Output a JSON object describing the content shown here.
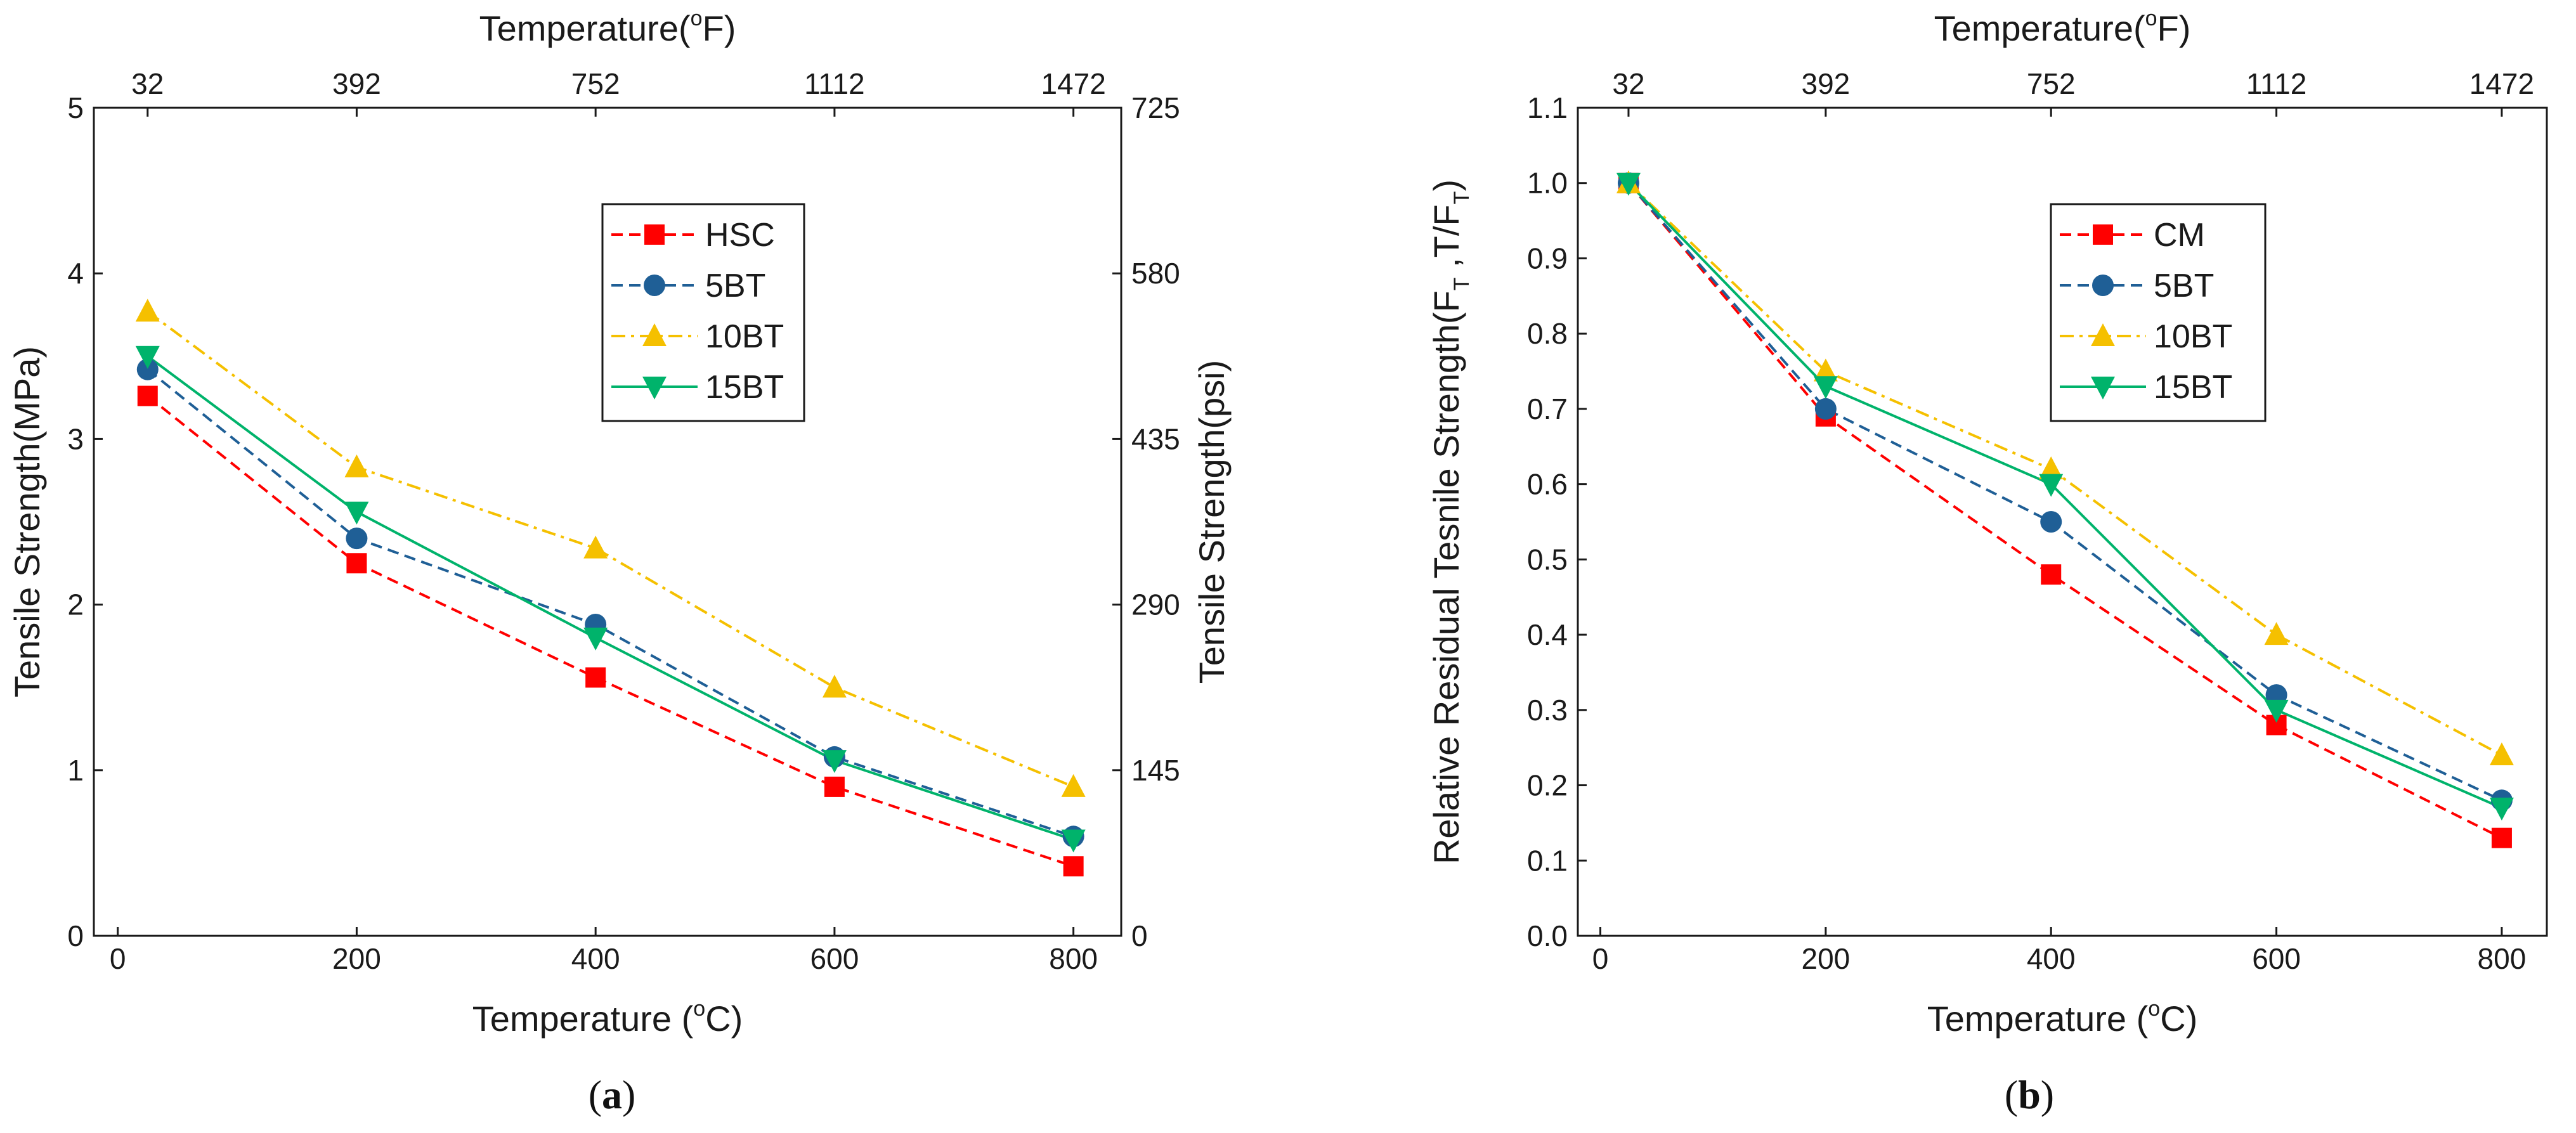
{
  "chart_data": [
    {
      "type": "line",
      "panel_label": "a",
      "x": [
        25,
        200,
        400,
        600,
        800
      ],
      "xlabel": "Temperature (°C)",
      "xlabel_parts": {
        "pre": "Temperature (",
        "sup": "o",
        "post": "C)"
      },
      "xlim": [
        -20,
        840
      ],
      "xticks": [
        0,
        200,
        400,
        600,
        800
      ],
      "ylabel": "Tensile Strength(MPa)",
      "ylim": [
        0,
        5
      ],
      "yticks": [
        0,
        1,
        2,
        3,
        4,
        5
      ],
      "secondary_ylabel": "Tensile Strength(psi)",
      "secondary_yticks": [
        "0",
        "145",
        "290",
        "435",
        "580",
        "725"
      ],
      "top_xlabel": "Temperature(°F)",
      "top_xlabel_parts": {
        "pre": "Temperature(",
        "sup": "o",
        "post": "F)"
      },
      "top_xticks": [
        "32",
        "392",
        "752",
        "1112",
        "1472"
      ],
      "grid": false,
      "legend": "upper-center",
      "series": [
        {
          "name": "HSC",
          "values": [
            3.26,
            2.25,
            1.56,
            0.9,
            0.42
          ],
          "color": "#ff0000",
          "marker": "square",
          "dash": "dashed"
        },
        {
          "name": "5BT",
          "values": [
            3.42,
            2.4,
            1.88,
            1.08,
            0.6
          ],
          "color": "#1f5f96",
          "marker": "circle",
          "dash": "dashed"
        },
        {
          "name": "10BT",
          "values": [
            3.77,
            2.83,
            2.34,
            1.5,
            0.9
          ],
          "color": "#f5c000",
          "marker": "triangle-up",
          "dash": "dashdot"
        },
        {
          "name": "15BT",
          "values": [
            3.5,
            2.56,
            1.8,
            1.06,
            0.58
          ],
          "color": "#00b36b",
          "marker": "triangle-down",
          "dash": "solid"
        }
      ]
    },
    {
      "type": "line",
      "panel_label": "b",
      "x": [
        25,
        200,
        400,
        600,
        800
      ],
      "xlabel": "Temperature (°C)",
      "xlabel_parts": {
        "pre": "Temperature (",
        "sup": "o",
        "post": "C)"
      },
      "xlim": [
        -20,
        840
      ],
      "xticks": [
        0,
        200,
        400,
        600,
        800
      ],
      "ylabel": "Relative Residual Tesnile Strength(FT,T/FT)",
      "ylabel_parts": {
        "pre": "Relative Residual Tesnile Strength(F",
        "sub1": "T",
        "mid": " ,T/F",
        "sub2": "T",
        "post": ")"
      },
      "ylim": [
        0,
        1.1
      ],
      "yticks": [
        "0.0",
        "0.1",
        "0.2",
        "0.3",
        "0.4",
        "0.5",
        "0.6",
        "0.7",
        "0.8",
        "0.9",
        "1.0",
        "1.1"
      ],
      "top_xlabel": "Temperature(°F)",
      "top_xlabel_parts": {
        "pre": "Temperature(",
        "sup": "o",
        "post": "F)"
      },
      "top_xticks": [
        "32",
        "392",
        "752",
        "1112",
        "1472"
      ],
      "grid": false,
      "legend": "upper-center",
      "series": [
        {
          "name": "CM",
          "values": [
            1.0,
            0.69,
            0.48,
            0.28,
            0.13
          ],
          "color": "#ff0000",
          "marker": "square",
          "dash": "dashed"
        },
        {
          "name": "5BT",
          "values": [
            1.0,
            0.7,
            0.55,
            0.32,
            0.18
          ],
          "color": "#1f5f96",
          "marker": "circle",
          "dash": "dashed"
        },
        {
          "name": "10BT",
          "values": [
            1.0,
            0.75,
            0.62,
            0.4,
            0.24
          ],
          "color": "#f5c000",
          "marker": "triangle-up",
          "dash": "dashdot"
        },
        {
          "name": "15BT",
          "values": [
            1.0,
            0.73,
            0.6,
            0.3,
            0.17
          ],
          "color": "#00b36b",
          "marker": "triangle-down",
          "dash": "solid"
        }
      ]
    }
  ]
}
